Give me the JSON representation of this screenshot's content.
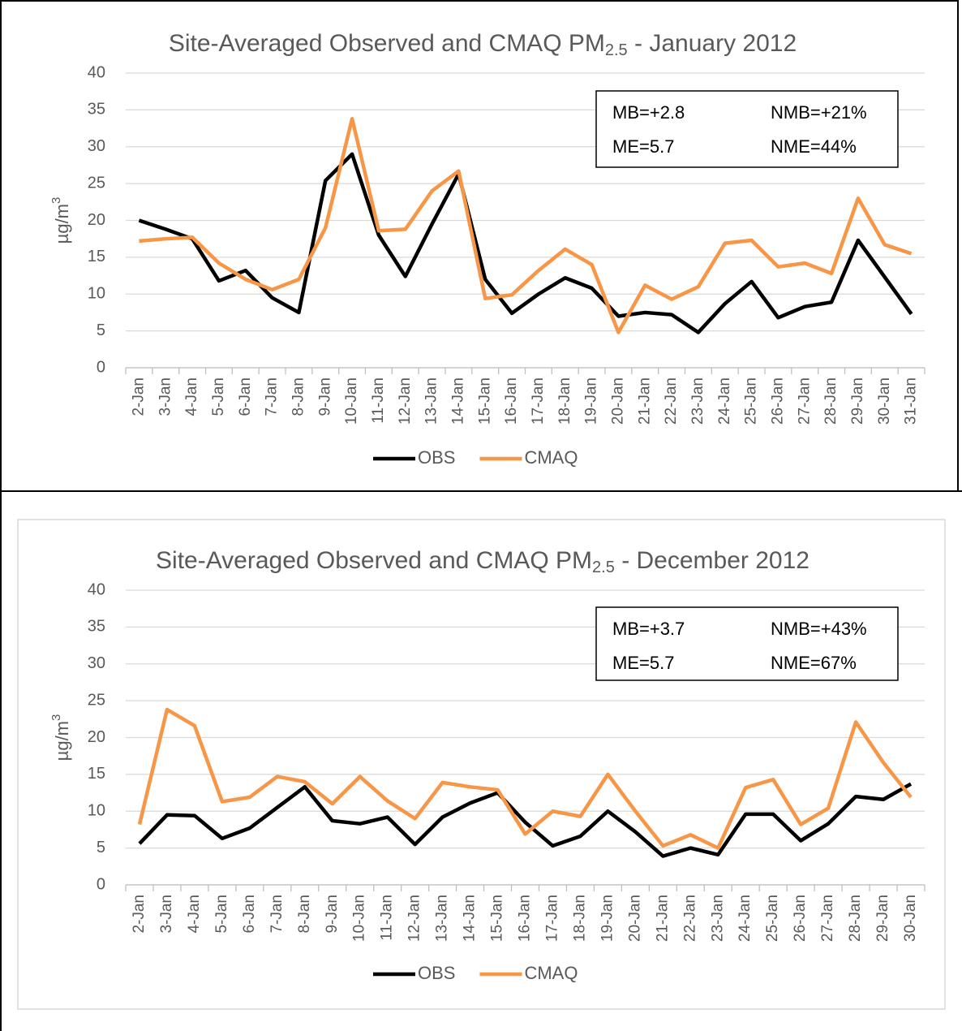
{
  "chart_data": [
    {
      "type": "line",
      "title": "Site-Averaged Observed and CMAQ PM",
      "title_subscript": "2.5",
      "title_suffix": " - January 2012",
      "ylabel": "µg/m",
      "ylabel_superscript": "3",
      "annotations": [
        "MB=+2.8",
        "NMB=+21%",
        "ME=5.7",
        "NME=44%"
      ],
      "categories": [
        "2-Jan",
        "3-Jan",
        "4-Jan",
        "5-Jan",
        "6-Jan",
        "7-Jan",
        "8-Jan",
        "9-Jan",
        "10-Jan",
        "11-Jan",
        "12-Jan",
        "13-Jan",
        "14-Jan",
        "15-Jan",
        "16-Jan",
        "17-Jan",
        "18-Jan",
        "19-Jan",
        "20-Jan",
        "21-Jan",
        "22-Jan",
        "23-Jan",
        "24-Jan",
        "25-Jan",
        "26-Jan",
        "27-Jan",
        "28-Jan",
        "29-Jan",
        "30-Jan",
        "31-Jan"
      ],
      "series": [
        {
          "name": "OBS",
          "color": "#000000",
          "values": [
            20,
            18.8,
            17.5,
            11.8,
            13.2,
            9.5,
            7.5,
            25.4,
            29,
            18,
            12.4,
            19.5,
            26.3,
            12,
            7.4,
            10,
            12.2,
            10.8,
            7,
            7.5,
            7.2,
            4.8,
            8.7,
            11.7,
            6.8,
            8.3,
            8.9,
            17.3,
            12.3,
            7.3
          ]
        },
        {
          "name": "CMAQ",
          "color": "#f79646",
          "values": [
            17.2,
            17.5,
            17.7,
            14.2,
            12,
            10.6,
            12,
            19,
            33.8,
            18.6,
            18.8,
            24,
            26.7,
            9.4,
            9.9,
            13.2,
            16.1,
            14,
            4.8,
            11.2,
            9.3,
            11,
            16.9,
            17.3,
            13.7,
            14.2,
            12.8,
            23,
            16.7,
            15.5
          ]
        }
      ],
      "ylim": [
        0,
        40
      ],
      "yticks": [
        0,
        5,
        10,
        15,
        20,
        25,
        30,
        35,
        40
      ],
      "grid": true,
      "legend": "bottom"
    },
    {
      "type": "line",
      "title": "Site-Averaged Observed and CMAQ PM",
      "title_subscript": "2.5",
      "title_suffix": " - December 2012",
      "ylabel": "µg/m",
      "ylabel_superscript": "3",
      "annotations": [
        "MB=+3.7",
        "NMB=+43%",
        "ME=5.7",
        "NME=67%"
      ],
      "categories": [
        "2-Jan",
        "3-Jan",
        "4-Jan",
        "5-Jan",
        "6-Jan",
        "7-Jan",
        "8-Jan",
        "9-Jan",
        "10-Jan",
        "11-Jan",
        "12-Jan",
        "13-Jan",
        "14-Jan",
        "15-Jan",
        "16-Jan",
        "17-Jan",
        "18-Jan",
        "19-Jan",
        "20-Jan",
        "21-Jan",
        "22-Jan",
        "23-Jan",
        "24-Jan",
        "25-Jan",
        "26-Jan",
        "27-Jan",
        "28-Jan",
        "29-Jan",
        "30-Jan"
      ],
      "series": [
        {
          "name": "OBS",
          "color": "#000000",
          "values": [
            5.6,
            9.5,
            9.4,
            6.3,
            7.7,
            10.5,
            13.3,
            8.7,
            8.3,
            9.2,
            5.5,
            9.2,
            11.1,
            12.5,
            8.5,
            5.3,
            6.6,
            10,
            7.2,
            3.9,
            5,
            4.1,
            9.6,
            9.6,
            6,
            8.3,
            12,
            11.6,
            13.7
          ]
        },
        {
          "name": "CMAQ",
          "color": "#f79646",
          "values": [
            8.2,
            23.8,
            21.6,
            11.3,
            11.9,
            14.7,
            14,
            11,
            14.7,
            11.4,
            9,
            13.9,
            13.3,
            12.9,
            6.9,
            10,
            9.3,
            15,
            10,
            5.3,
            6.8,
            5,
            13.2,
            14.3,
            8.2,
            10.4,
            22.1,
            16.6,
            11.9
          ]
        }
      ],
      "ylim": [
        0,
        40
      ],
      "yticks": [
        0,
        5,
        10,
        15,
        20,
        25,
        30,
        35,
        40
      ],
      "grid": true,
      "legend": "bottom"
    }
  ]
}
